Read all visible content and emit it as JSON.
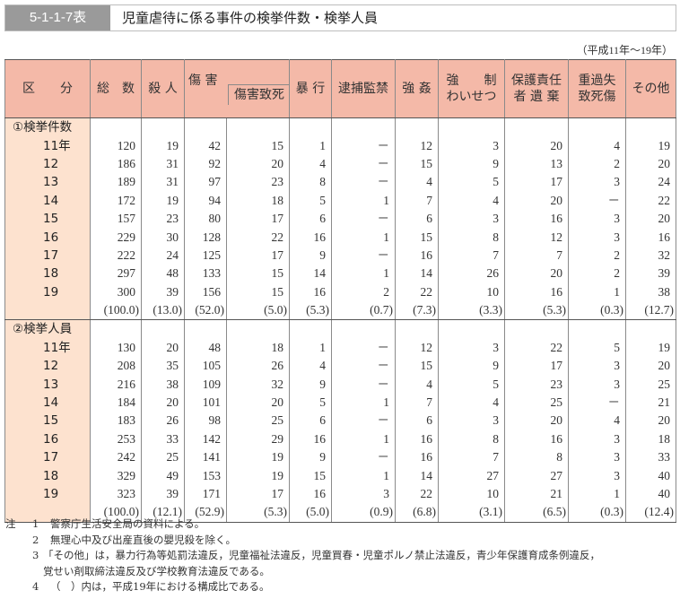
{
  "header": {
    "table_number": "5-1-1-7表",
    "title": "児童虐待に係る事件の検挙件数・検挙人員",
    "period": "（平成11年～19年）"
  },
  "colors": {
    "header_bg": "#f4b9a8",
    "label_bg": "#fde2cf",
    "title_number_bg": "#9a9a9a"
  },
  "columns": {
    "category": "区　　分",
    "total": "総　数",
    "murder": "殺 人",
    "injury": "傷 害",
    "injury_death": "傷害致死",
    "assault": "暴 行",
    "confinement": "逮捕監禁",
    "rape": "強 姦",
    "indecency_line1": "強　　制",
    "indecency_line2": "わいせつ",
    "abandonment_line1": "保護責任",
    "abandonment_line2": "者 遺 棄",
    "negligence_line1": "重過失",
    "negligence_line2": "致死傷",
    "other": "その他"
  },
  "sections": [
    {
      "label": "①検挙件数",
      "rows": [
        {
          "year": "11年",
          "values": [
            "120",
            "19",
            "42",
            "15",
            "1",
            "－",
            "12",
            "3",
            "20",
            "4",
            "19"
          ]
        },
        {
          "year": "12",
          "values": [
            "186",
            "31",
            "92",
            "20",
            "4",
            "－",
            "15",
            "9",
            "13",
            "2",
            "20"
          ]
        },
        {
          "year": "13",
          "values": [
            "189",
            "31",
            "97",
            "23",
            "8",
            "－",
            "4",
            "5",
            "17",
            "3",
            "24"
          ]
        },
        {
          "year": "14",
          "values": [
            "172",
            "19",
            "94",
            "18",
            "5",
            "1",
            "7",
            "4",
            "20",
            "－",
            "22"
          ]
        },
        {
          "year": "15",
          "values": [
            "157",
            "23",
            "80",
            "17",
            "6",
            "－",
            "6",
            "3",
            "16",
            "3",
            "20"
          ]
        },
        {
          "year": "16",
          "values": [
            "229",
            "30",
            "128",
            "22",
            "16",
            "1",
            "15",
            "8",
            "12",
            "3",
            "16"
          ]
        },
        {
          "year": "17",
          "values": [
            "222",
            "24",
            "125",
            "17",
            "9",
            "－",
            "16",
            "7",
            "7",
            "2",
            "32"
          ]
        },
        {
          "year": "18",
          "values": [
            "297",
            "48",
            "133",
            "15",
            "14",
            "1",
            "14",
            "26",
            "20",
            "2",
            "39"
          ]
        },
        {
          "year": "19",
          "values": [
            "300",
            "39",
            "156",
            "15",
            "16",
            "2",
            "22",
            "10",
            "16",
            "1",
            "38"
          ]
        }
      ],
      "ratios": [
        "(100.0)",
        "(13.0)",
        "(52.0)",
        "(5.0)",
        "(5.3)",
        "(0.7)",
        "(7.3)",
        "(3.3)",
        "(5.3)",
        "(0.3)",
        "(12.7)"
      ]
    },
    {
      "label": "②検挙人員",
      "rows": [
        {
          "year": "11年",
          "values": [
            "130",
            "20",
            "48",
            "18",
            "1",
            "－",
            "12",
            "3",
            "22",
            "5",
            "19"
          ]
        },
        {
          "year": "12",
          "values": [
            "208",
            "35",
            "105",
            "26",
            "4",
            "－",
            "15",
            "9",
            "17",
            "3",
            "20"
          ]
        },
        {
          "year": "13",
          "values": [
            "216",
            "38",
            "109",
            "32",
            "9",
            "－",
            "4",
            "5",
            "23",
            "3",
            "25"
          ]
        },
        {
          "year": "14",
          "values": [
            "184",
            "20",
            "101",
            "20",
            "5",
            "1",
            "7",
            "4",
            "25",
            "－",
            "21"
          ]
        },
        {
          "year": "15",
          "values": [
            "183",
            "26",
            "98",
            "25",
            "6",
            "－",
            "6",
            "3",
            "20",
            "4",
            "20"
          ]
        },
        {
          "year": "16",
          "values": [
            "253",
            "33",
            "142",
            "29",
            "16",
            "1",
            "16",
            "8",
            "16",
            "3",
            "18"
          ]
        },
        {
          "year": "17",
          "values": [
            "242",
            "25",
            "141",
            "19",
            "9",
            "－",
            "16",
            "7",
            "8",
            "3",
            "33"
          ]
        },
        {
          "year": "18",
          "values": [
            "329",
            "49",
            "153",
            "19",
            "15",
            "1",
            "14",
            "27",
            "27",
            "3",
            "40"
          ]
        },
        {
          "year": "19",
          "values": [
            "323",
            "39",
            "171",
            "17",
            "16",
            "3",
            "22",
            "10",
            "21",
            "1",
            "40"
          ]
        }
      ],
      "ratios": [
        "(100.0)",
        "(12.1)",
        "(52.9)",
        "(5.3)",
        "(5.0)",
        "(0.9)",
        "(6.8)",
        "(3.1)",
        "(6.5)",
        "(0.3)",
        "(12.4)"
      ]
    }
  ],
  "notes": {
    "head": "注",
    "items": [
      {
        "num": "1",
        "text": "警察庁生活安全局の資料による。"
      },
      {
        "num": "2",
        "text": "無理心中及び出産直後の嬰児殺を除く。"
      },
      {
        "num": "3",
        "text": "「その他」は，暴力行為等処罰法違反，児童福祉法違反，児童買春・児童ポルノ禁止法違反，青少年保護育成条例違反，",
        "cont": "覚せい剤取締法違反及び学校教育法違反である。"
      },
      {
        "num": "4",
        "text": "（　）内は，平成19年における構成比である。"
      }
    ]
  }
}
